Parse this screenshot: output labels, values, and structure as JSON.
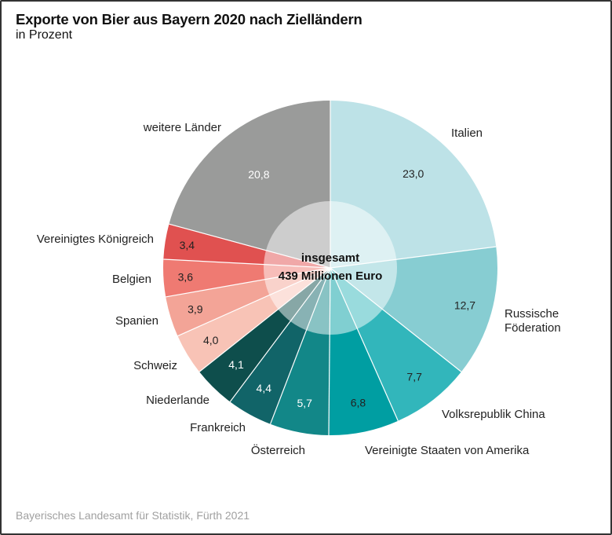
{
  "header": {
    "title": "Exporte von Bier aus Bayern 2020 nach Zielländern",
    "subtitle": "in Prozent"
  },
  "footer": {
    "source": "Bayerisches Landesamt für Statistik, Fürth 2021"
  },
  "chart_data": {
    "type": "pie",
    "variant": "donut-with-lighter-inner-ring",
    "title": "Exporte von Bier aus Bayern 2020 nach Zielländern",
    "subtitle": "in Prozent",
    "unit": "Prozent",
    "center_label": [
      "insgesamt",
      "439 Millionen Euro"
    ],
    "total_value": 439,
    "total_unit": "Millionen Euro",
    "start": "top",
    "direction": "clockwise",
    "slices": [
      {
        "label": "Italien",
        "value": 23.0,
        "value_label": "23,0",
        "color": "#bde2e7",
        "value_color": "#222222"
      },
      {
        "label": "Russische Föderation",
        "label_lines": [
          "Russische",
          "Föderation"
        ],
        "value": 12.7,
        "value_label": "12,7",
        "color": "#87cdd2",
        "value_color": "#222222"
      },
      {
        "label": "Volksrepublik China",
        "value": 7.7,
        "value_label": "7,7",
        "color": "#32b6bb",
        "value_color": "#222222"
      },
      {
        "label": "Vereinigte Staaten von Amerika",
        "value": 6.8,
        "value_label": "6,8",
        "color": "#009ea2",
        "value_color": "#222222"
      },
      {
        "label": "Österreich",
        "value": 5.7,
        "value_label": "5,7",
        "color": "#128788",
        "value_color": "#ffffff"
      },
      {
        "label": "Frankreich",
        "value": 4.4,
        "value_label": "4,4",
        "color": "#116468",
        "value_color": "#ffffff"
      },
      {
        "label": "Niederlande",
        "value": 4.1,
        "value_label": "4,1",
        "color": "#0e4e4c",
        "value_color": "#ffffff"
      },
      {
        "label": "Schweiz",
        "value": 4.0,
        "value_label": "4,0",
        "color": "#f8c3b6",
        "value_color": "#222222"
      },
      {
        "label": "Spanien",
        "value": 3.9,
        "value_label": "3,9",
        "color": "#f3a497",
        "value_color": "#222222"
      },
      {
        "label": "Belgien",
        "value": 3.6,
        "value_label": "3,6",
        "color": "#ef7a72",
        "value_color": "#222222"
      },
      {
        "label": "Vereinigtes Königreich",
        "value": 3.4,
        "value_label": "3,4",
        "color": "#e05150",
        "value_color": "#222222"
      },
      {
        "label": "weitere Länder",
        "value": 20.8,
        "value_label": "20,8",
        "color": "#9a9b9a",
        "value_color": "#ffffff"
      }
    ]
  }
}
